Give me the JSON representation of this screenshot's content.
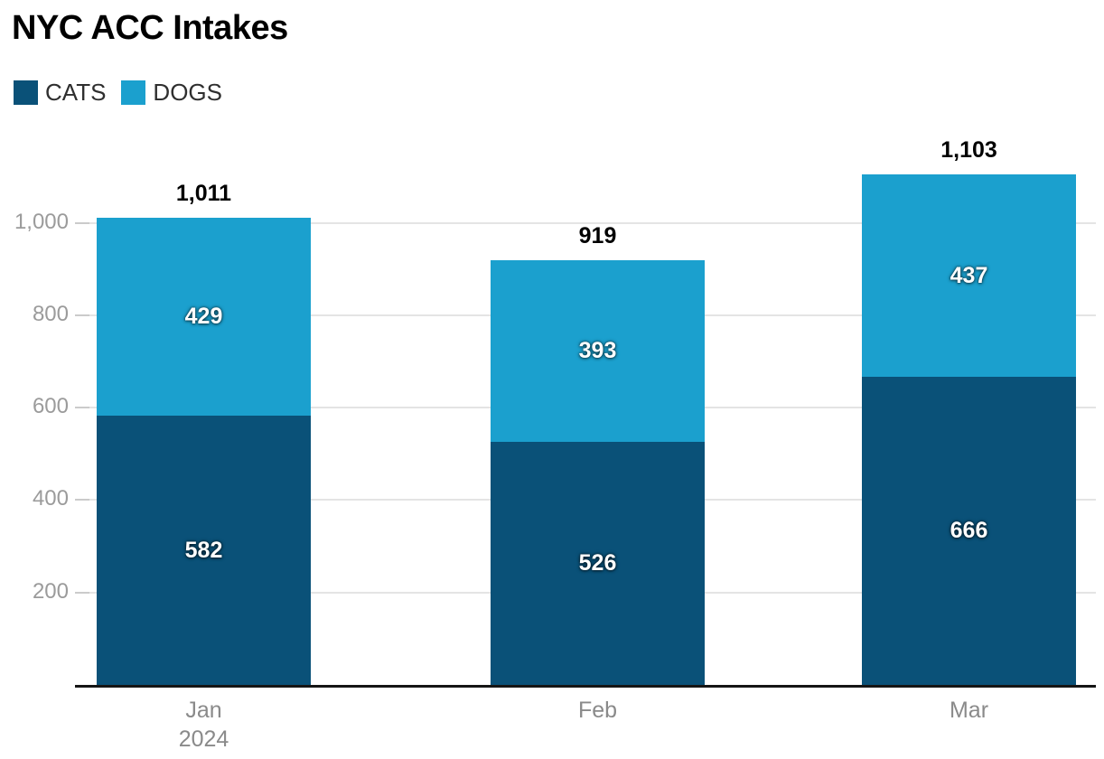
{
  "title": "NYC ACC Intakes",
  "legend": {
    "items": [
      {
        "label": "CATS",
        "color": "#0A5178"
      },
      {
        "label": "DOGS",
        "color": "#1BA0CE"
      }
    ]
  },
  "chart_data": {
    "type": "bar",
    "stacked": true,
    "title": "NYC ACC Intakes",
    "categories": [
      "Jan",
      "Feb",
      "Mar"
    ],
    "x_secondary_label": "2024",
    "x_secondary_label_category_index": 0,
    "series": [
      {
        "name": "CATS",
        "color": "#0A5178",
        "values": [
          582,
          526,
          666
        ],
        "value_labels": [
          "582",
          "526",
          "666"
        ]
      },
      {
        "name": "DOGS",
        "color": "#1BA0CE",
        "values": [
          429,
          393,
          437
        ],
        "value_labels": [
          "429",
          "393",
          "437"
        ]
      }
    ],
    "totals": [
      1011,
      919,
      1103
    ],
    "total_labels": [
      "1,011",
      "919",
      "1,103"
    ],
    "y_axis": {
      "ticks": [
        200,
        400,
        600,
        800,
        1000
      ],
      "tick_labels": [
        "200",
        "400",
        "600",
        "800",
        "1,000"
      ],
      "range": [
        0,
        1103
      ]
    },
    "grid": true,
    "legend_position": "top-left",
    "colors": {
      "grid": "#e4e4e4",
      "tick": "#cbcbcb",
      "axis_line": "#151515",
      "y_label": "#9b9b9b",
      "x_label": "#8a8a8a",
      "total_label": "#000000",
      "value_label": "#ffffff",
      "title": "#000000",
      "legend_label": "#2f2f2f"
    }
  }
}
